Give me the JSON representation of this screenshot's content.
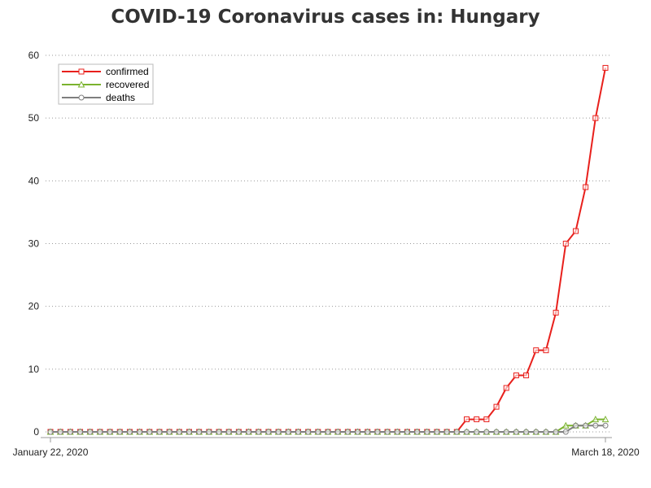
{
  "chart_data": {
    "type": "line",
    "title": "COVID-19 Coronavirus cases in: Hungary",
    "xlabel": "",
    "ylabel": "",
    "x_start_label": "January 22, 2020",
    "x_end_label": "March 18, 2020",
    "x": [
      "2020-01-22",
      "2020-01-23",
      "2020-01-24",
      "2020-01-25",
      "2020-01-26",
      "2020-01-27",
      "2020-01-28",
      "2020-01-29",
      "2020-01-30",
      "2020-01-31",
      "2020-02-01",
      "2020-02-02",
      "2020-02-03",
      "2020-02-04",
      "2020-02-05",
      "2020-02-06",
      "2020-02-07",
      "2020-02-08",
      "2020-02-09",
      "2020-02-10",
      "2020-02-11",
      "2020-02-12",
      "2020-02-13",
      "2020-02-14",
      "2020-02-15",
      "2020-02-16",
      "2020-02-17",
      "2020-02-18",
      "2020-02-19",
      "2020-02-20",
      "2020-02-21",
      "2020-02-22",
      "2020-02-23",
      "2020-02-24",
      "2020-02-25",
      "2020-02-26",
      "2020-02-27",
      "2020-02-28",
      "2020-02-29",
      "2020-03-01",
      "2020-03-02",
      "2020-03-03",
      "2020-03-04",
      "2020-03-05",
      "2020-03-06",
      "2020-03-07",
      "2020-03-08",
      "2020-03-09",
      "2020-03-10",
      "2020-03-11",
      "2020-03-12",
      "2020-03-13",
      "2020-03-14",
      "2020-03-15",
      "2020-03-16",
      "2020-03-17",
      "2020-03-18"
    ],
    "ylim": [
      0,
      60
    ],
    "yticks": [
      0,
      10,
      20,
      30,
      40,
      50,
      60
    ],
    "grid": "horizontal-dotted",
    "legend_position": "top-left",
    "series": [
      {
        "name": "confirmed",
        "color": "#e8201c",
        "marker": "square",
        "values": [
          0,
          0,
          0,
          0,
          0,
          0,
          0,
          0,
          0,
          0,
          0,
          0,
          0,
          0,
          0,
          0,
          0,
          0,
          0,
          0,
          0,
          0,
          0,
          0,
          0,
          0,
          0,
          0,
          0,
          0,
          0,
          0,
          0,
          0,
          0,
          0,
          0,
          0,
          0,
          0,
          0,
          0,
          2,
          2,
          2,
          4,
          7,
          9,
          9,
          13,
          13,
          19,
          30,
          32,
          39,
          50,
          58
        ]
      },
      {
        "name": "recovered",
        "color": "#7ab32e",
        "marker": "triangle",
        "values": [
          0,
          0,
          0,
          0,
          0,
          0,
          0,
          0,
          0,
          0,
          0,
          0,
          0,
          0,
          0,
          0,
          0,
          0,
          0,
          0,
          0,
          0,
          0,
          0,
          0,
          0,
          0,
          0,
          0,
          0,
          0,
          0,
          0,
          0,
          0,
          0,
          0,
          0,
          0,
          0,
          0,
          0,
          0,
          0,
          0,
          0,
          0,
          0,
          0,
          0,
          0,
          0,
          1,
          1,
          1,
          2,
          2
        ]
      },
      {
        "name": "deaths",
        "color": "#7f7f7f",
        "marker": "circle",
        "values": [
          0,
          0,
          0,
          0,
          0,
          0,
          0,
          0,
          0,
          0,
          0,
          0,
          0,
          0,
          0,
          0,
          0,
          0,
          0,
          0,
          0,
          0,
          0,
          0,
          0,
          0,
          0,
          0,
          0,
          0,
          0,
          0,
          0,
          0,
          0,
          0,
          0,
          0,
          0,
          0,
          0,
          0,
          0,
          0,
          0,
          0,
          0,
          0,
          0,
          0,
          0,
          0,
          0,
          1,
          1,
          1,
          1
        ]
      }
    ]
  }
}
